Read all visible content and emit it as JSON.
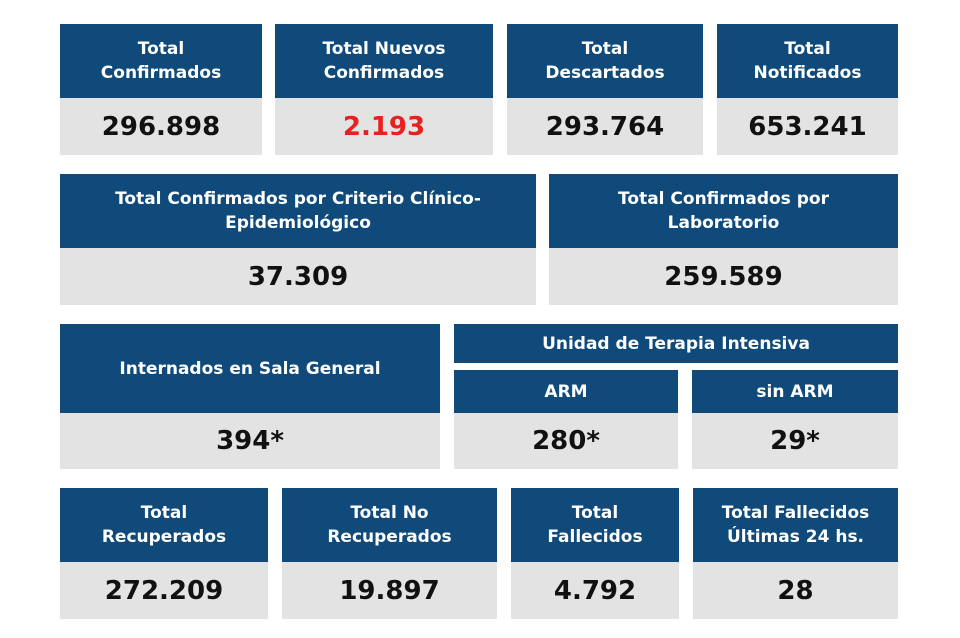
{
  "row1": [
    {
      "label": "Total\nConfirmados",
      "value": "296.898"
    },
    {
      "label": "Total Nuevos\nConfirmados",
      "value": "2.193"
    },
    {
      "label": "Total\nDescartados",
      "value": "293.764"
    },
    {
      "label": "Total\nNotificados",
      "value": "653.241"
    }
  ],
  "row2": [
    {
      "label": "Total Confirmados por Criterio Clínico-\nEpidemiológico",
      "value": "37.309"
    },
    {
      "label": "Total Confirmados por\nLaboratorio",
      "value": "259.589"
    }
  ],
  "row3": {
    "sala_general": {
      "label": "Internados en Sala General",
      "value": "394*"
    },
    "uti_title": "Unidad de Terapia Intensiva",
    "arm": {
      "label": "ARM",
      "value": "280*"
    },
    "sin_arm": {
      "label": "sin ARM",
      "value": "29*"
    }
  },
  "row4": [
    {
      "label": "Total\nRecuperados",
      "value": "272.209"
    },
    {
      "label": "Total No\nRecuperados",
      "value": "19.897"
    },
    {
      "label": "Total\nFallecidos",
      "value": "4.792"
    },
    {
      "label": "Total Fallecidos\nÚltimas 24 hs.",
      "value": "28"
    }
  ],
  "colors": {
    "header_blue": "#0f4a7a",
    "value_bg": "#e3e3e3",
    "highlight_red": "#e8201f"
  }
}
